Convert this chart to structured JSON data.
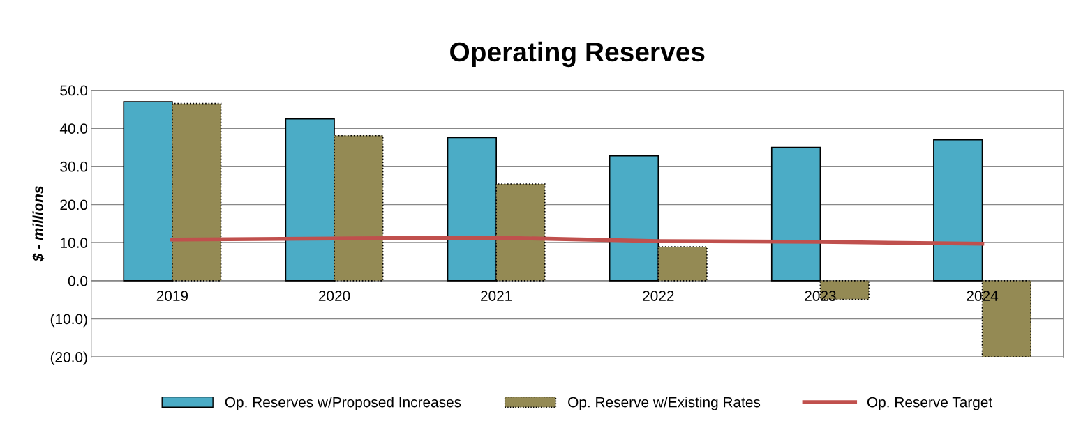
{
  "chart_data": {
    "type": "bar",
    "title": "Operating Reserves",
    "ylabel": "$ - millions",
    "categories": [
      "2019",
      "2020",
      "2021",
      "2022",
      "2023",
      "2024"
    ],
    "series": [
      {
        "name": "Op. Reserves w/Proposed Increases",
        "color": "#4bacc6",
        "values": [
          47.0,
          42.5,
          37.6,
          32.8,
          35.0,
          37.0
        ]
      },
      {
        "name": "Op. Reserve w/Existing Rates",
        "color": "#948a54",
        "line_style": "dotted",
        "values": [
          46.5,
          38.1,
          25.4,
          8.9,
          -4.9,
          -20.0
        ]
      },
      {
        "name": "Op. Reserve Target",
        "type": "line",
        "color": "#c0504d",
        "values": [
          10.8,
          11.1,
          11.3,
          10.4,
          10.2,
          9.7
        ]
      }
    ],
    "ylim": [
      -20,
      50
    ],
    "yticks": [
      {
        "value": -20,
        "label": "(20.0)"
      },
      {
        "value": -10,
        "label": "(10.0)"
      },
      {
        "value": 0,
        "label": "0.0"
      },
      {
        "value": 10,
        "label": "10.0"
      },
      {
        "value": 20,
        "label": "20.0"
      },
      {
        "value": 30,
        "label": "30.0"
      },
      {
        "value": 40,
        "label": "40.0"
      },
      {
        "value": 50,
        "label": "50.0"
      }
    ],
    "grid": "y",
    "legend": "bottom"
  }
}
